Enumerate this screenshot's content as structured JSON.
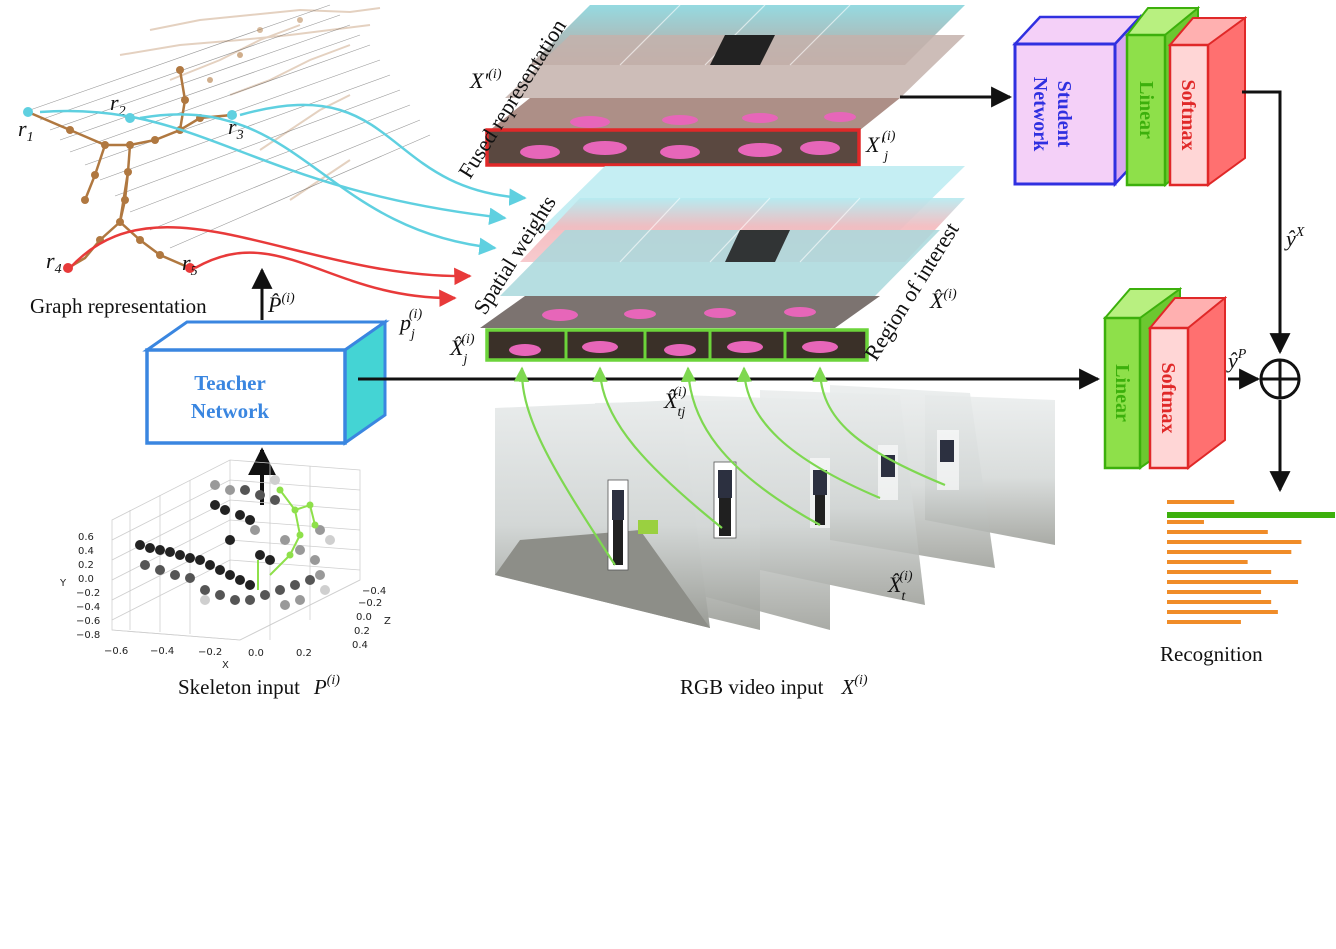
{
  "labels": {
    "graph_representation": "Graph representation",
    "skeleton_input": "Skeleton input",
    "skeleton_var": "P",
    "skeleton_sup": "(i)",
    "rgb_input": "RGB video input",
    "rgb_var": "X",
    "rgb_sup": "(i)",
    "recognition": "Recognition",
    "fused_representation": "Fused representation",
    "spatial_weights": "Spatial weights",
    "region_of_interest": "Region of interest",
    "p_hat": "P̂",
    "p_hat_sup": "(i)",
    "p_j": "p",
    "p_j_sub": "j",
    "p_j_sup": "(i)",
    "x_prime": "X′",
    "x_prime_sup": "(i)",
    "x_prime_j": "X′",
    "x_prime_j_sub": "j",
    "x_prime_j_sup": "(i)",
    "x_hat": "X̂",
    "x_hat_sup": "(i)",
    "x_hat_j": "X̂",
    "x_hat_j_sub": "j",
    "x_hat_j_sup": "(i)",
    "x_hat_tj": "X̂",
    "x_hat_tj_sub": "tj",
    "x_hat_tj_sup": "(i)",
    "x_hat_t": "X̂",
    "x_hat_t_sub": "t",
    "x_hat_t_sup": "(i)",
    "y_hat_x": "ŷ",
    "y_hat_x_sup": "X",
    "y_hat_p": "ŷ",
    "y_hat_p_sup": "P",
    "oplus": "⊕",
    "joints": [
      {
        "base": "r",
        "sub": "1"
      },
      {
        "base": "r",
        "sub": "2"
      },
      {
        "base": "r",
        "sub": "3"
      },
      {
        "base": "r",
        "sub": "4"
      },
      {
        "base": "r",
        "sub": "5"
      }
    ]
  },
  "boxes": {
    "teacher_line1": "Teacher",
    "teacher_line2": "Network",
    "student_line1": "Student",
    "student_line2": "Network",
    "linear": "Linear",
    "softmax": "Softmax"
  },
  "plot3d": {
    "axis_x": "X",
    "axis_y": "Y",
    "axis_z": "Z",
    "x_ticks": [
      "−0.6",
      "−0.4",
      "−0.2",
      "0.0",
      "0.2",
      "0.4"
    ],
    "y_ticks": [
      "0.6",
      "0.4",
      "0.2",
      "0.0",
      "−0.2",
      "−0.4",
      "−0.6",
      "−0.8"
    ],
    "z_ticks": [
      "−0.4",
      "−0.2",
      "0.0",
      "0.2",
      "0.4"
    ]
  },
  "recognition_bars": [
    0.4,
    1.0,
    0.22,
    0.6,
    0.8,
    0.74,
    0.48,
    0.62,
    0.78,
    0.56,
    0.62,
    0.66,
    0.44
  ],
  "recognition_highlight_index": 1,
  "colors": {
    "teacher_fill": "#ffffff",
    "teacher_side": "#44d4d4",
    "teacher_stroke": "#3a86e0",
    "student_fill": "#f4d0f8",
    "student_stroke": "#3030e0",
    "linear_fill": "#8ee04a",
    "linear_stroke": "#3cb00c",
    "softmax_fill": "#ff7b7b",
    "softmax_stroke": "#e02828",
    "cyan_curve": "#5fd0e0",
    "red_curve": "#e83a3a",
    "green_arrow": "#7ed850",
    "bar_orange": "#f08c28",
    "bar_green": "#3cb00c"
  }
}
